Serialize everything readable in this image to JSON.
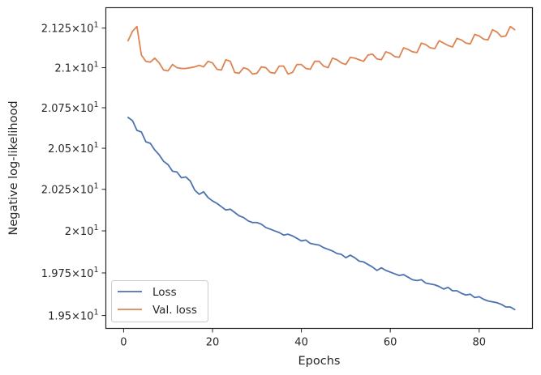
{
  "chart_data": {
    "type": "line",
    "xlabel": "Epochs",
    "ylabel": "Negative log-likelihood",
    "xlim": [
      -4,
      92
    ],
    "ylim": [
      19.425,
      21.38
    ],
    "y_scale": "log",
    "grid": false,
    "legend_position": "lower-left",
    "x_ticks": [
      {
        "value": 0,
        "label": "0"
      },
      {
        "value": 20,
        "label": "20"
      },
      {
        "value": 40,
        "label": "40"
      },
      {
        "value": 60,
        "label": "60"
      },
      {
        "value": 80,
        "label": "80"
      }
    ],
    "y_ticks": [
      {
        "value": 19.5,
        "base": "1.95",
        "exp": "1"
      },
      {
        "value": 19.75,
        "base": "1.975",
        "exp": "1"
      },
      {
        "value": 20.0,
        "base": "2",
        "exp": "1"
      },
      {
        "value": 20.25,
        "base": "2.025",
        "exp": "1"
      },
      {
        "value": 20.5,
        "base": "2.05",
        "exp": "1"
      },
      {
        "value": 20.75,
        "base": "2.075",
        "exp": "1"
      },
      {
        "value": 21.0,
        "base": "2.1",
        "exp": "1"
      },
      {
        "value": 21.25,
        "base": "2.125",
        "exp": "1"
      }
    ],
    "x": [
      1,
      2,
      3,
      4,
      5,
      6,
      7,
      8,
      9,
      10,
      11,
      12,
      13,
      14,
      15,
      16,
      17,
      18,
      19,
      20,
      21,
      22,
      23,
      24,
      25,
      26,
      27,
      28,
      29,
      30,
      31,
      32,
      33,
      34,
      35,
      36,
      37,
      38,
      39,
      40,
      41,
      42,
      43,
      44,
      45,
      46,
      47,
      48,
      49,
      50,
      51,
      52,
      53,
      54,
      55,
      56,
      57,
      58,
      59,
      60,
      61,
      62,
      63,
      64,
      65,
      66,
      67,
      68,
      69,
      70,
      71,
      72,
      73,
      74,
      75,
      76,
      77,
      78,
      79,
      80,
      81,
      82,
      83,
      84,
      85,
      86,
      87,
      88
    ],
    "series": [
      {
        "name": "Loss",
        "color": "#4c72b0",
        "values": [
          20.69,
          20.67,
          20.61,
          20.6,
          20.54,
          20.53,
          20.49,
          20.46,
          20.42,
          20.4,
          20.36,
          20.355,
          20.32,
          20.325,
          20.3,
          20.245,
          20.22,
          20.235,
          20.2,
          20.18,
          20.165,
          20.145,
          20.125,
          20.13,
          20.11,
          20.09,
          20.08,
          20.06,
          20.05,
          20.05,
          20.04,
          20.02,
          20.01,
          20.0,
          19.99,
          19.975,
          19.98,
          19.97,
          19.955,
          19.94,
          19.945,
          19.925,
          19.92,
          19.915,
          19.9,
          19.89,
          19.88,
          19.865,
          19.86,
          19.84,
          19.855,
          19.84,
          19.82,
          19.815,
          19.8,
          19.785,
          19.765,
          19.78,
          19.765,
          19.755,
          19.745,
          19.735,
          19.74,
          19.725,
          19.71,
          19.705,
          19.71,
          19.69,
          19.685,
          19.68,
          19.67,
          19.655,
          19.665,
          19.645,
          19.645,
          19.63,
          19.62,
          19.625,
          19.605,
          19.61,
          19.595,
          19.585,
          19.58,
          19.575,
          19.565,
          19.55,
          19.55,
          19.535
        ]
      },
      {
        "name": "Val. loss",
        "color": "#dd8452",
        "values": [
          21.17,
          21.23,
          21.26,
          21.08,
          21.04,
          21.035,
          21.06,
          21.03,
          20.985,
          20.98,
          21.02,
          21.0,
          20.995,
          20.995,
          21.0,
          21.005,
          21.015,
          21.005,
          21.04,
          21.03,
          20.99,
          20.985,
          21.05,
          21.04,
          20.97,
          20.965,
          21.0,
          20.99,
          20.96,
          20.965,
          21.005,
          21.0,
          20.97,
          20.965,
          21.01,
          21.01,
          20.96,
          20.97,
          21.02,
          21.02,
          20.995,
          20.99,
          21.04,
          21.04,
          21.01,
          21.0,
          21.06,
          21.05,
          21.03,
          21.02,
          21.065,
          21.06,
          21.05,
          21.04,
          21.08,
          21.085,
          21.055,
          21.05,
          21.1,
          21.09,
          21.07,
          21.065,
          21.125,
          21.115,
          21.1,
          21.095,
          21.155,
          21.145,
          21.125,
          21.12,
          21.17,
          21.155,
          21.14,
          21.13,
          21.185,
          21.175,
          21.155,
          21.15,
          21.21,
          21.2,
          21.18,
          21.175,
          21.24,
          21.225,
          21.195,
          21.2,
          21.26,
          21.24
        ]
      }
    ]
  }
}
